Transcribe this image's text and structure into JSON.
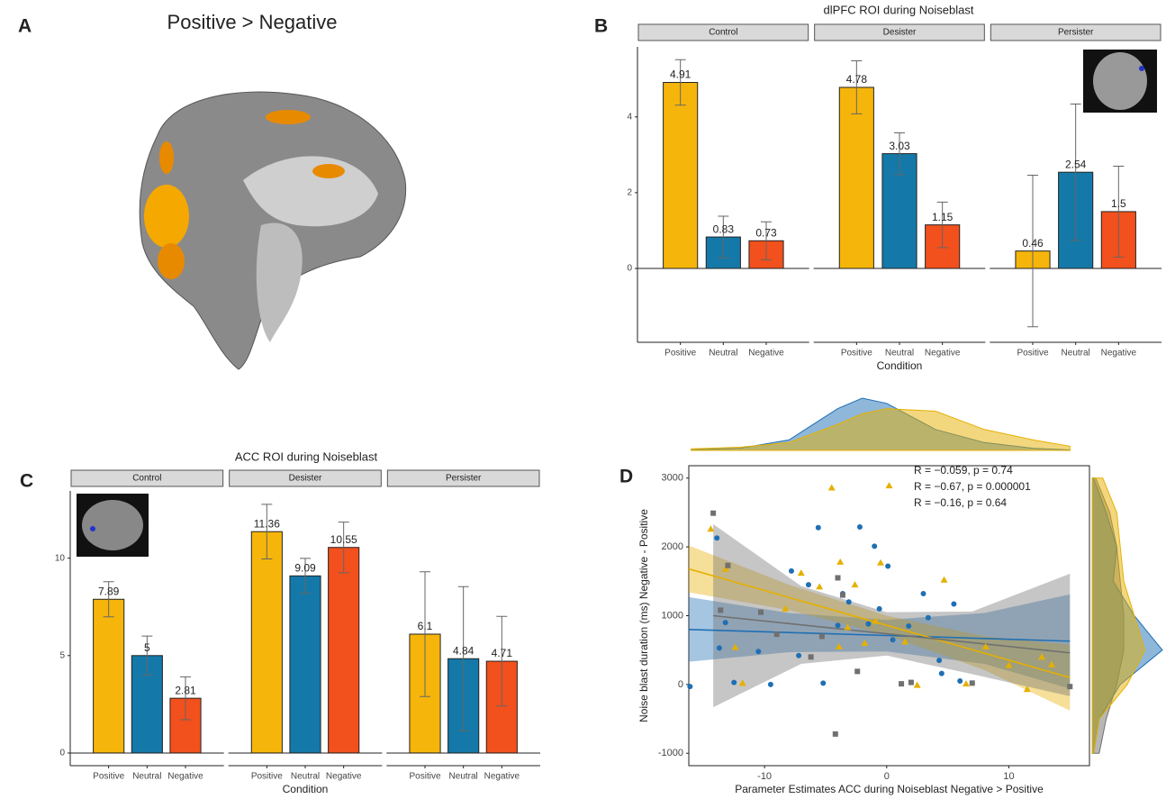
{
  "figure_a": {
    "label": "A",
    "title": "Positive > Negative"
  },
  "chart_data": [
    {
      "type": "bar",
      "panel_label": "B",
      "title": "dlPFC ROI during Noiseblast",
      "x_label": "Condition",
      "categories": [
        "Positive",
        "Neutral",
        "Negative"
      ],
      "colors": [
        "#f5b50a",
        "#1479a8",
        "#f2501c"
      ],
      "facets": [
        {
          "name": "Control",
          "values": [
            4.91,
            0.83,
            0.73
          ],
          "errors": [
            0.6,
            0.55,
            0.5
          ]
        },
        {
          "name": "Desister",
          "values": [
            4.78,
            3.03,
            1.15
          ],
          "errors": [
            0.7,
            0.55,
            0.6
          ]
        },
        {
          "name": "Persister",
          "values": [
            0.46,
            2.54,
            1.5
          ],
          "errors": [
            2.0,
            1.8,
            1.2
          ]
        }
      ],
      "ylim": [
        -1.95,
        5.85
      ],
      "yticks": [
        0,
        2,
        4
      ]
    },
    {
      "type": "bar",
      "panel_label": "C",
      "title": "ACC ROI during Noiseblast",
      "x_label": "Condition",
      "categories": [
        "Positive",
        "Neutral",
        "Negative"
      ],
      "colors": [
        "#f5b50a",
        "#1479a8",
        "#f2501c"
      ],
      "facets": [
        {
          "name": "Control",
          "values": [
            7.89,
            5,
            2.81
          ],
          "errors": [
            0.9,
            1.0,
            1.1
          ]
        },
        {
          "name": "Desister",
          "values": [
            11.36,
            9.09,
            10.55
          ],
          "errors": [
            1.4,
            0.9,
            1.3
          ]
        },
        {
          "name": "Persister",
          "values": [
            6.1,
            4.84,
            4.71
          ],
          "errors": [
            3.2,
            3.7,
            2.3
          ]
        }
      ],
      "ylim": [
        -0.65,
        13.45
      ],
      "yticks": [
        0,
        5,
        10
      ]
    },
    {
      "type": "scatter",
      "panel_label": "D",
      "x_label": "Parameter Estimates ACC during Noiseblast Negative > Positive",
      "y_label": "Noise blast duration (ms) Negative - Positive",
      "xlim": [
        -16.2,
        16.6
      ],
      "ylim": [
        -1180,
        3180
      ],
      "xticks": [
        -10,
        0,
        10
      ],
      "yticks": [
        -1000,
        0,
        1000,
        2000,
        3000
      ],
      "annotations": [
        {
          "text": "R = −0.059, p = 0.74",
          "color": "#1f6fb4"
        },
        {
          "text": "R = −0.67, p = 0.000001",
          "color": "#e6b000"
        },
        {
          "text": "R = −0.16, p = 0.64",
          "color": "#666666"
        }
      ],
      "series": [
        {
          "color": "#1f6fb4",
          "marker": "circle",
          "x": [
            -16.1,
            -13.9,
            -13.7,
            -13.2,
            -12.5,
            -10.5,
            -9.5,
            -7.8,
            -7.2,
            -6.4,
            -5.6,
            -5.2,
            -4.0,
            -3.6,
            -3.1,
            -2.2,
            -1.5,
            -1.0,
            -0.6,
            0.1,
            0.5,
            1.8,
            3.4,
            4.3,
            4.5,
            5.5,
            6.0,
            3.0
          ],
          "y": [
            -30,
            2130,
            530,
            900,
            30,
            480,
            0,
            1650,
            420,
            1450,
            2280,
            20,
            860,
            1320,
            1200,
            2290,
            880,
            2010,
            1100,
            1720,
            650,
            850,
            970,
            350,
            160,
            1170,
            50,
            1320
          ]
        },
        {
          "color": "#e6b000",
          "marker": "triangle",
          "x": [
            -14.4,
            -13.2,
            -12.4,
            -11.8,
            -7.0,
            -4.5,
            -3.8,
            -3.2,
            -2.6,
            -1.8,
            0.2,
            -0.5,
            -0.9,
            1.5,
            2.5,
            4.7,
            6.5,
            8.1,
            10.0,
            11.5,
            12.7,
            13.5,
            -5.5,
            -8.3,
            -3.9
          ],
          "y": [
            2260,
            1680,
            540,
            20,
            1620,
            2860,
            1780,
            830,
            1450,
            600,
            2890,
            1770,
            920,
            620,
            -10,
            1520,
            10,
            550,
            280,
            -70,
            400,
            290,
            1420,
            1100,
            550
          ]
        },
        {
          "color": "#707070",
          "marker": "square",
          "x": [
            -14.2,
            -13.6,
            -13.0,
            -10.3,
            -5.3,
            -4.0,
            -4.2,
            -3.6,
            1.2,
            2.0,
            -9.0,
            7.0,
            15.0,
            -6.2,
            -2.4
          ],
          "y": [
            2490,
            1080,
            1730,
            1050,
            700,
            1550,
            -720,
            1300,
            10,
            30,
            730,
            20,
            -30,
            400,
            190
          ]
        }
      ],
      "fits": [
        {
          "color": "#1f6fb4",
          "x": [
            -16.2,
            -8,
            0,
            8,
            15
          ],
          "y": [
            800,
            755,
            712,
            668,
            630
          ],
          "lower": [
            330,
            470,
            480,
            300,
            -60
          ],
          "upper": [
            1270,
            1040,
            940,
            1040,
            1310
          ]
        },
        {
          "color": "#e6b000",
          "x": [
            -16.2,
            -8,
            0,
            8,
            15
          ],
          "y": [
            1680,
            1265,
            860,
            455,
            100
          ],
          "lower": [
            1340,
            1080,
            720,
            210,
            -380
          ],
          "upper": [
            2020,
            1450,
            1000,
            700,
            580
          ]
        },
        {
          "color": "#707070",
          "x": [
            -14.2,
            -7,
            0,
            7,
            15
          ],
          "y": [
            1000,
            867,
            737,
            608,
            460
          ],
          "lower": [
            -330,
            300,
            420,
            150,
            -170
          ],
          "upper": [
            2330,
            1430,
            1050,
            1060,
            1610
          ]
        }
      ],
      "density_x": {
        "x": [
          -16,
          -12,
          -8,
          -4,
          -2,
          0,
          4,
          8,
          12,
          15
        ],
        "series": [
          {
            "color": "#1f6fb4",
            "values": [
              0.01,
              0.04,
              0.2,
              0.8,
              1,
              0.9,
              0.4,
              0.15,
              0.04,
              0.01
            ]
          },
          {
            "color": "#e6b000",
            "values": [
              0.03,
              0.06,
              0.15,
              0.5,
              0.7,
              0.8,
              0.75,
              0.4,
              0.2,
              0.08
            ]
          }
        ]
      },
      "density_y": {
        "y": [
          -1000,
          -500,
          0,
          500,
          1000,
          1500,
          2000,
          2500,
          3000
        ],
        "series": [
          {
            "color": "#707070",
            "values": [
              0.1,
              0.2,
              0.35,
              0.45,
              0.45,
              0.4,
              0.35,
              0.25,
              0.05
            ]
          },
          {
            "color": "#1f6fb4",
            "values": [
              0.02,
              0.1,
              0.4,
              1.0,
              0.6,
              0.3,
              0.35,
              0.2,
              0.02
            ]
          },
          {
            "color": "#e6b000",
            "values": [
              0.02,
              0.1,
              0.5,
              0.75,
              0.6,
              0.45,
              0.4,
              0.35,
              0.15
            ]
          }
        ]
      }
    }
  ]
}
